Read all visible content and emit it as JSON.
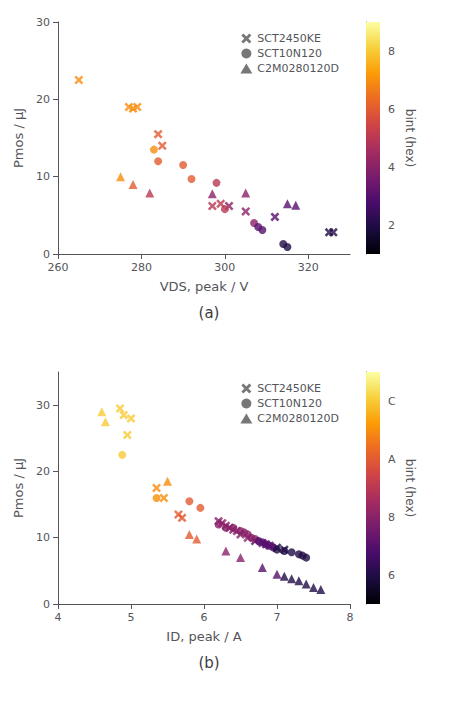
{
  "chart_data": [
    {
      "type": "scatter",
      "title": "(a)",
      "xlabel": "VDS, peak / V",
      "ylabel": "Pmos / µJ",
      "xlim": [
        260,
        330
      ],
      "ylim": [
        0,
        30
      ],
      "xticks": [
        260,
        280,
        300,
        320
      ],
      "yticks": [
        0,
        10,
        20,
        30
      ],
      "grid": false,
      "legend": "upper right",
      "colorbar": {
        "label": "bint (hex)",
        "range": [
          1,
          9
        ],
        "ticks": [
          2,
          4,
          6,
          8
        ],
        "colors": [
          "#000004",
          "#1b0c41",
          "#4a0c6b",
          "#781c6d",
          "#a52c60",
          "#cf4446",
          "#ed6925",
          "#fb9b06",
          "#f7d13d",
          "#fcffa4"
        ]
      },
      "series": [
        {
          "name": "SCT2450KE",
          "marker": "x",
          "x": [
            265,
            277,
            278,
            279,
            284,
            285,
            297,
            299,
            301,
            305,
            312,
            325,
            326
          ],
          "values": [
            22.5,
            19.0,
            18.8,
            19.0,
            15.5,
            14.0,
            6.2,
            6.5,
            6.2,
            5.5,
            4.8,
            2.8,
            2.8
          ],
          "color_values": [
            7,
            7,
            7,
            7,
            6,
            6,
            5,
            5,
            4,
            4,
            3,
            2,
            2
          ]
        },
        {
          "name": "SCT10N120",
          "marker": "circle",
          "x": [
            283,
            284,
            290,
            292,
            298,
            300,
            307,
            308,
            309,
            314,
            315
          ],
          "values": [
            13.5,
            12.0,
            11.5,
            9.7,
            9.2,
            5.8,
            4.0,
            3.5,
            3.1,
            1.3,
            0.9
          ],
          "color_values": [
            7,
            6,
            6,
            6,
            5,
            5,
            4,
            3,
            3,
            2,
            2
          ]
        },
        {
          "name": "C2M0280120D",
          "marker": "triangle",
          "x": [
            275,
            278,
            282,
            297,
            305,
            315,
            317
          ],
          "values": [
            10.0,
            9.0,
            7.9,
            7.8,
            7.9,
            6.5,
            6.3
          ],
          "color_values": [
            7,
            6,
            5,
            4,
            4,
            3,
            3
          ]
        }
      ]
    },
    {
      "type": "scatter",
      "title": "(b)",
      "xlabel": "ID, peak / A",
      "ylabel": "Pmos / µJ",
      "xlim": [
        4,
        8
      ],
      "ylim": [
        0,
        35
      ],
      "xticks": [
        4,
        5,
        6,
        7,
        8
      ],
      "yticks": [
        0,
        10,
        20,
        30
      ],
      "grid": false,
      "legend": "upper right",
      "colorbar": {
        "label": "bint (hex)",
        "range": [
          5,
          13
        ],
        "ticks": [
          6,
          8,
          {
            "value": 10,
            "label": "A"
          },
          {
            "value": 12,
            "label": "C"
          }
        ],
        "colors": [
          "#000004",
          "#1b0c41",
          "#4a0c6b",
          "#781c6d",
          "#a52c60",
          "#cf4446",
          "#ed6925",
          "#fb9b06",
          "#f7d13d",
          "#fcffa4"
        ]
      },
      "series": [
        {
          "name": "SCT2450KE",
          "marker": "x",
          "x": [
            4.85,
            4.9,
            4.95,
            5.0,
            5.35,
            5.45,
            5.65,
            5.7,
            6.2,
            6.25,
            6.3,
            6.35,
            6.4,
            6.45,
            6.5,
            6.6,
            6.7,
            6.8,
            6.85,
            6.9,
            7.0,
            7.1
          ],
          "values": [
            29.5,
            28.5,
            25.5,
            28.0,
            17.5,
            16.0,
            13.5,
            13.0,
            12.5,
            12.2,
            11.8,
            11.5,
            11.2,
            11.0,
            10.5,
            10.0,
            9.5,
            9.2,
            9.0,
            8.8,
            8.5,
            8.2
          ],
          "color_values": [
            12,
            12,
            12,
            12,
            11,
            11,
            10,
            10,
            8,
            8,
            8,
            8,
            8,
            8,
            8,
            8,
            7,
            7,
            7,
            7,
            6,
            6
          ]
        },
        {
          "name": "SCT10N120",
          "marker": "circle",
          "x": [
            4.88,
            5.35,
            5.8,
            5.95,
            6.2,
            6.3,
            6.4,
            6.5,
            6.55,
            6.6,
            6.65,
            6.7,
            6.75,
            6.8,
            6.85,
            6.9,
            6.95,
            7.0,
            7.1,
            7.2,
            7.3,
            7.35,
            7.4
          ],
          "values": [
            22.5,
            16.0,
            15.5,
            14.5,
            12.0,
            11.5,
            11.5,
            11.0,
            10.8,
            10.5,
            10.0,
            9.8,
            9.5,
            9.3,
            9.0,
            8.8,
            8.5,
            8.2,
            8.0,
            7.8,
            7.5,
            7.3,
            7.0
          ],
          "color_values": [
            12,
            11,
            10,
            10,
            8,
            8,
            8,
            8,
            8,
            8,
            8,
            8,
            7,
            7,
            7,
            7,
            7,
            6,
            6,
            6,
            6,
            6,
            6
          ]
        },
        {
          "name": "C2M0280120D",
          "marker": "triangle",
          "x": [
            4.6,
            4.65,
            5.5,
            5.8,
            5.9,
            6.3,
            6.5,
            6.8,
            7.0,
            7.1,
            7.2,
            7.3,
            7.4,
            7.5,
            7.6
          ],
          "values": [
            29.0,
            27.5,
            18.5,
            10.5,
            9.8,
            8.0,
            7.0,
            5.5,
            4.5,
            4.2,
            3.8,
            3.5,
            3.0,
            2.5,
            2.2
          ],
          "color_values": [
            12,
            12,
            11,
            10,
            10,
            8,
            8,
            7,
            7,
            6,
            6,
            6,
            6,
            6,
            6
          ]
        }
      ]
    }
  ]
}
